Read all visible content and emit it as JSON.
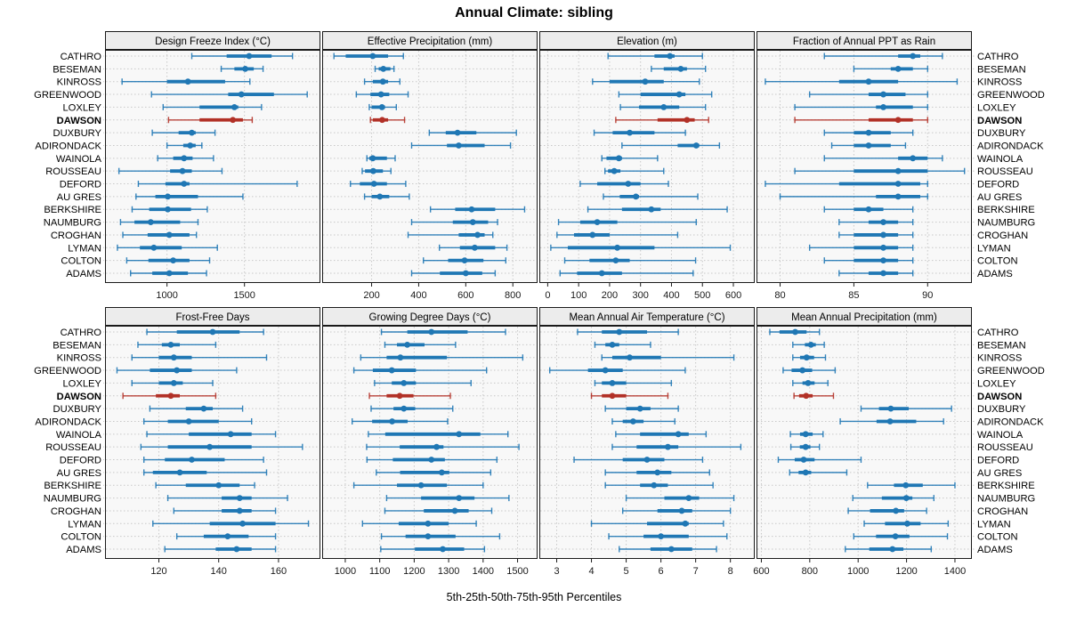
{
  "title": "Annual Climate: sibling",
  "caption": "5th-25th-50th-75th-95th Percentiles",
  "highlight_station": "DAWSON",
  "colors": {
    "series_blue": "#1f77b4",
    "highlight_red": "#b23127",
    "grid": "#c8c8c8",
    "strip_bg": "#ececec",
    "panel_bg": "#f8f8f8",
    "border": "#1a1a1a",
    "tick_text": "#1a1a1a"
  },
  "chart_data": {
    "type": "dotplot-percentiles",
    "title": "Annual Climate: sibling",
    "xlabel": "5th-25th-50th-75th-95th Percentiles",
    "percentile_labels": [
      "5th",
      "25th",
      "50th",
      "75th",
      "95th"
    ],
    "legend_position": "none",
    "grid": "dotted",
    "stations": [
      "CATHRO",
      "BESEMAN",
      "KINROSS",
      "GREENWOOD",
      "LOXLEY",
      "DAWSON",
      "DUXBURY",
      "ADIRONDACK",
      "WAINOLA",
      "ROUSSEAU",
      "DEFORD",
      "AU GRES",
      "BERKSHIRE",
      "NAUMBURG",
      "CROGHAN",
      "LYMAN",
      "COLTON",
      "ADAMS"
    ],
    "panels": [
      {
        "title": "Design Freeze Index (°C)",
        "row": 1,
        "xlim": [
          600,
          1990
        ],
        "ticks": [
          1000,
          1500
        ],
        "series": [
          [
            1160,
            1385,
            1530,
            1675,
            1810
          ],
          [
            1350,
            1435,
            1505,
            1560,
            1620
          ],
          [
            710,
            1000,
            1135,
            1375,
            1535
          ],
          [
            900,
            1395,
            1480,
            1690,
            1905
          ],
          [
            975,
            1210,
            1435,
            1460,
            1610
          ],
          [
            1010,
            1210,
            1425,
            1490,
            1550
          ],
          [
            905,
            1075,
            1160,
            1185,
            1310
          ],
          [
            1000,
            1105,
            1150,
            1185,
            1225
          ],
          [
            940,
            1040,
            1110,
            1165,
            1300
          ],
          [
            690,
            1020,
            1100,
            1160,
            1355
          ],
          [
            815,
            990,
            1110,
            1145,
            1840
          ],
          [
            800,
            925,
            1005,
            1200,
            1490
          ],
          [
            775,
            885,
            1005,
            1155,
            1260
          ],
          [
            700,
            790,
            895,
            1085,
            1200
          ],
          [
            715,
            875,
            1015,
            1145,
            1190
          ],
          [
            680,
            825,
            915,
            1095,
            1325
          ],
          [
            740,
            880,
            1040,
            1145,
            1275
          ],
          [
            765,
            905,
            1015,
            1135,
            1255
          ]
        ]
      },
      {
        "title": "Effective Precipitation (mm)",
        "row": 1,
        "xlim": [
          -10,
          905
        ],
        "ticks": [
          200,
          400,
          600,
          800
        ],
        "series": [
          [
            40,
            90,
            205,
            270,
            335
          ],
          [
            215,
            230,
            250,
            280,
            295
          ],
          [
            170,
            205,
            248,
            270,
            320
          ],
          [
            135,
            195,
            240,
            275,
            355
          ],
          [
            190,
            200,
            244,
            257,
            305
          ],
          [
            195,
            205,
            245,
            270,
            340
          ],
          [
            445,
            515,
            565,
            645,
            815
          ],
          [
            370,
            520,
            570,
            680,
            790
          ],
          [
            180,
            190,
            205,
            265,
            300
          ],
          [
            160,
            172,
            207,
            248,
            282
          ],
          [
            110,
            150,
            210,
            265,
            345
          ],
          [
            170,
            200,
            235,
            275,
            360
          ],
          [
            450,
            555,
            625,
            725,
            850
          ],
          [
            370,
            545,
            630,
            695,
            735
          ],
          [
            355,
            570,
            650,
            680,
            715
          ],
          [
            488,
            575,
            638,
            725,
            775
          ],
          [
            420,
            525,
            595,
            675,
            770
          ],
          [
            370,
            490,
            600,
            670,
            725
          ]
        ]
      },
      {
        "title": "Elevation (m)",
        "row": 1,
        "xlim": [
          -27,
          669
        ],
        "ticks": [
          0,
          100,
          200,
          300,
          400,
          500,
          600
        ],
        "series": [
          [
            195,
            345,
            395,
            410,
            500
          ],
          [
            335,
            375,
            430,
            450,
            510
          ],
          [
            145,
            200,
            315,
            375,
            490
          ],
          [
            230,
            300,
            425,
            445,
            530
          ],
          [
            235,
            295,
            375,
            425,
            510
          ],
          [
            220,
            355,
            450,
            475,
            520
          ],
          [
            150,
            210,
            265,
            345,
            445
          ],
          [
            240,
            420,
            480,
            490,
            555
          ],
          [
            175,
            190,
            230,
            240,
            355
          ],
          [
            185,
            195,
            215,
            235,
            375
          ],
          [
            105,
            160,
            260,
            300,
            390
          ],
          [
            180,
            233,
            285,
            295,
            485
          ],
          [
            130,
            240,
            335,
            365,
            580
          ],
          [
            35,
            105,
            160,
            225,
            480
          ],
          [
            30,
            85,
            145,
            200,
            420
          ],
          [
            10,
            65,
            225,
            345,
            590
          ],
          [
            55,
            135,
            220,
            265,
            478
          ],
          [
            40,
            95,
            175,
            240,
            470
          ]
        ]
      },
      {
        "title": "Fraction of Annual PPT as Rain",
        "row": 1,
        "xlim": [
          78.4,
          93
        ],
        "ticks": [
          80,
          85,
          90
        ],
        "series": [
          [
            83,
            88,
            89,
            89.5,
            91
          ],
          [
            85,
            87.5,
            88,
            89,
            90
          ],
          [
            79,
            84,
            86,
            88,
            92
          ],
          [
            82,
            86,
            87,
            88.5,
            90
          ],
          [
            81,
            86.5,
            87,
            89,
            90
          ],
          [
            81,
            86,
            88,
            89,
            90
          ],
          [
            83,
            85,
            86,
            87.5,
            89
          ],
          [
            83.5,
            85,
            86,
            87.5,
            88.5
          ],
          [
            83,
            88,
            89,
            90,
            91
          ],
          [
            81,
            85,
            88,
            90,
            92.5
          ],
          [
            79,
            84,
            88,
            89.5,
            90
          ],
          [
            80,
            86.5,
            88,
            89.5,
            90
          ],
          [
            83,
            85,
            86,
            87,
            89
          ],
          [
            84,
            86,
            87,
            88,
            89
          ],
          [
            84,
            85,
            87,
            88,
            89
          ],
          [
            82,
            85,
            87,
            88,
            89
          ],
          [
            83,
            85,
            87,
            88,
            89
          ],
          [
            84,
            86,
            87,
            88,
            89
          ]
        ]
      },
      {
        "title": "Frost-Free Days",
        "row": 2,
        "xlim": [
          102,
          174
        ],
        "ticks": [
          120,
          140,
          160
        ],
        "series": [
          [
            116,
            126,
            138,
            147,
            155
          ],
          [
            113,
            121,
            124,
            127,
            139
          ],
          [
            111,
            120,
            125,
            131,
            156
          ],
          [
            106,
            117,
            126,
            131,
            146
          ],
          [
            111,
            120,
            125,
            128,
            138
          ],
          [
            108,
            119,
            124,
            127,
            139
          ],
          [
            117,
            129,
            135,
            138,
            148
          ],
          [
            115,
            123,
            130,
            140,
            151
          ],
          [
            116,
            130,
            144,
            151,
            159
          ],
          [
            114,
            123,
            137,
            151,
            168
          ],
          [
            115,
            122,
            131,
            142,
            155
          ],
          [
            115,
            118,
            127,
            136,
            156
          ],
          [
            119,
            129,
            140,
            147,
            152
          ],
          [
            123,
            141,
            147,
            151,
            163
          ],
          [
            125,
            141,
            147,
            151,
            159
          ],
          [
            118,
            137,
            148,
            159,
            170
          ],
          [
            126,
            135,
            143,
            150,
            159
          ],
          [
            122,
            139,
            146,
            151,
            159
          ]
        ]
      },
      {
        "title": "Growing Degree Days (°C)",
        "row": 2,
        "xlim": [
          933,
          1558
        ],
        "ticks": [
          1000,
          1100,
          1200,
          1300,
          1400,
          1500
        ],
        "series": [
          [
            1105,
            1180,
            1250,
            1355,
            1465
          ],
          [
            1115,
            1150,
            1180,
            1230,
            1320
          ],
          [
            1045,
            1120,
            1160,
            1295,
            1515
          ],
          [
            1025,
            1080,
            1135,
            1205,
            1410
          ],
          [
            1085,
            1135,
            1170,
            1205,
            1365
          ],
          [
            1070,
            1120,
            1158,
            1198,
            1305
          ],
          [
            1075,
            1140,
            1170,
            1203,
            1312
          ],
          [
            1020,
            1078,
            1136,
            1181,
            1297
          ],
          [
            1067,
            1116,
            1330,
            1392,
            1472
          ],
          [
            1062,
            1158,
            1265,
            1285,
            1504
          ],
          [
            1063,
            1138,
            1250,
            1289,
            1440
          ],
          [
            1090,
            1159,
            1280,
            1302,
            1422
          ],
          [
            1025,
            1150,
            1220,
            1295,
            1400
          ],
          [
            1120,
            1220,
            1330,
            1375,
            1475
          ],
          [
            1115,
            1228,
            1318,
            1358,
            1425
          ],
          [
            1050,
            1155,
            1240,
            1300,
            1380
          ],
          [
            1105,
            1175,
            1240,
            1320,
            1448
          ],
          [
            1103,
            1202,
            1283,
            1345,
            1404
          ]
        ]
      },
      {
        "title": "Mean Annual Air Temperature (°C)",
        "row": 2,
        "xlim": [
          2.5,
          8.7
        ],
        "ticks": [
          3,
          4,
          5,
          6,
          7,
          8
        ],
        "series": [
          [
            3.6,
            4.3,
            4.8,
            5.6,
            6.5
          ],
          [
            4.1,
            4.4,
            4.6,
            4.8,
            5.7
          ],
          [
            4.3,
            4.6,
            5.1,
            6.0,
            8.1
          ],
          [
            2.8,
            3.9,
            4.4,
            4.9,
            6.7
          ],
          [
            4.1,
            4.3,
            4.6,
            5.0,
            6.3
          ],
          [
            4.0,
            4.3,
            4.6,
            5.0,
            6.2
          ],
          [
            4.4,
            5.0,
            5.4,
            5.7,
            6.5
          ],
          [
            4.6,
            4.9,
            5.2,
            5.5,
            6.4
          ],
          [
            4.7,
            5.4,
            6.5,
            6.8,
            7.3
          ],
          [
            4.6,
            5.3,
            6.2,
            6.5,
            8.3
          ],
          [
            3.5,
            4.9,
            5.6,
            6.1,
            7.2
          ],
          [
            4.4,
            5.3,
            5.9,
            6.3,
            7.4
          ],
          [
            4.4,
            5.4,
            5.8,
            6.2,
            7.5
          ],
          [
            5.0,
            6.1,
            6.8,
            7.1,
            8.1
          ],
          [
            4.9,
            5.9,
            6.6,
            6.9,
            8.0
          ],
          [
            4.0,
            5.6,
            6.7,
            6.8,
            7.8
          ],
          [
            4.5,
            5.5,
            6.0,
            6.8,
            7.9
          ],
          [
            4.8,
            5.7,
            6.3,
            6.9,
            7.6
          ]
        ]
      },
      {
        "title": "Mean Annual Precipitation (mm)",
        "row": 2,
        "xlim": [
          580,
          1470
        ],
        "ticks": [
          600,
          800,
          1000,
          1200,
          1400
        ],
        "series": [
          [
            635,
            675,
            740,
            787,
            840
          ],
          [
            730,
            780,
            805,
            825,
            860
          ],
          [
            730,
            760,
            787,
            818,
            865
          ],
          [
            690,
            725,
            770,
            810,
            905
          ],
          [
            730,
            770,
            793,
            820,
            875
          ],
          [
            735,
            756,
            785,
            812,
            898
          ],
          [
            1012,
            1086,
            1135,
            1209,
            1386
          ],
          [
            926,
            1076,
            1132,
            1240,
            1353
          ],
          [
            720,
            760,
            783,
            812,
            855
          ],
          [
            722,
            759,
            783,
            803,
            840
          ],
          [
            670,
            738,
            775,
            820,
            1012
          ],
          [
            717,
            754,
            783,
            806,
            953
          ],
          [
            1039,
            1148,
            1197,
            1267,
            1400
          ],
          [
            978,
            1098,
            1199,
            1224,
            1313
          ],
          [
            959,
            1049,
            1156,
            1190,
            1283
          ],
          [
            1025,
            1111,
            1203,
            1258,
            1372
          ],
          [
            982,
            1074,
            1154,
            1212,
            1369
          ],
          [
            947,
            1046,
            1142,
            1187,
            1302
          ]
        ]
      }
    ]
  }
}
